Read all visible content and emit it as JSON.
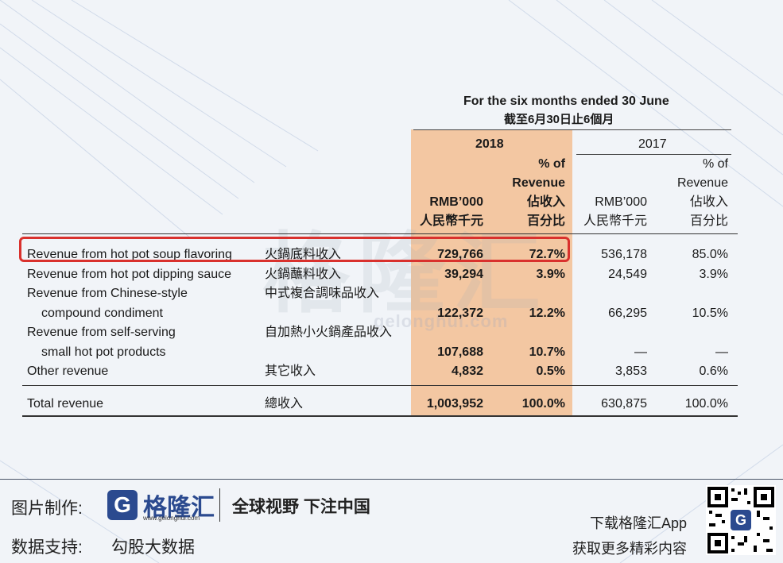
{
  "header": {
    "period_en": "For the six months ended 30 June",
    "period_zh": "截至6月30日止6個月",
    "year_2018": "2018",
    "year_2017": "2017",
    "pct_of_2018": "% of",
    "revenue_2018": "Revenue",
    "rmb_2018": "RMB’000",
    "share_zh_2018": "佔收入",
    "unit_zh_2018": "人民幣千元",
    "pct_zh_2018": "百分比",
    "pct_of_2017": "% of",
    "revenue_2017": "Revenue",
    "rmb_2017": "RMB’000",
    "share_zh_2017": "佔收入",
    "unit_zh_2017": "人民幣千元",
    "pct_zh_2017": "百分比"
  },
  "rows": [
    {
      "en": "Revenue from hot pot soup flavoring",
      "zh": "火鍋底料收入",
      "v2018": "729,766",
      "p2018": "72.7%",
      "v2017": "536,178",
      "p2017": "85.0%"
    },
    {
      "en": "Revenue from hot pot dipping sauce",
      "zh": "火鍋蘸料收入",
      "v2018": "39,294",
      "p2018": "3.9%",
      "v2017": "24,549",
      "p2017": "3.9%"
    },
    {
      "en": "Revenue from Chinese-style",
      "en2": "compound condiment",
      "zh": "中式複合調味品收入",
      "v2018": "122,372",
      "p2018": "12.2%",
      "v2017": "66,295",
      "p2017": "10.5%"
    },
    {
      "en": "Revenue from self-serving",
      "en2": "small hot pot products",
      "zh": "自加熱小火鍋產品收入",
      "v2018": "107,688",
      "p2018": "10.7%",
      "v2017": "—",
      "p2017": "—"
    },
    {
      "en": "Other revenue",
      "zh": "其它收入",
      "v2018": "4,832",
      "p2018": "0.5%",
      "v2017": "3,853",
      "p2017": "0.6%"
    }
  ],
  "total": {
    "en": "Total revenue",
    "zh": "總收入",
    "v2018": "1,003,952",
    "p2018": "100.0%",
    "v2017": "630,875",
    "p2017": "100.0%"
  },
  "watermark": {
    "text": "格隆汇",
    "url": "gelonghui.com"
  },
  "footer": {
    "made_by": "图片制作:",
    "brand": "格隆汇",
    "brand_url": "www.gelonghui.com",
    "slogan": "全球视野 下注中国",
    "data_support": "数据支持:",
    "data_source": "勾股大数据",
    "download": "下载格隆汇App",
    "more": "获取更多精彩内容",
    "logo_letter": "G"
  },
  "colors": {
    "highlight": "#f3c7a2",
    "red_box": "#d9312d",
    "brand_blue": "#2b4a8f"
  }
}
